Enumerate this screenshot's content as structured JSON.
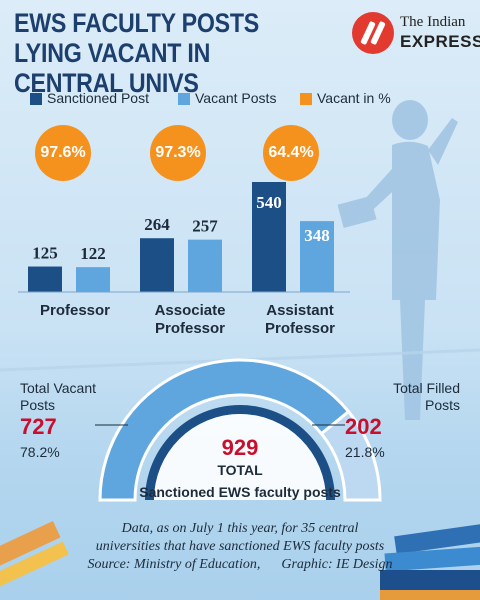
{
  "title": "EWS FACULTY POSTS LYING VACANT IN CENTRAL UNIVS",
  "logo": {
    "line1": "The Indian",
    "line2": "EXPRESS"
  },
  "legend": [
    {
      "label": "Sanctioned Post",
      "color": "#1b4f86"
    },
    {
      "label": "Vacant Posts",
      "color": "#5fa6df"
    },
    {
      "label": "Vacant in %",
      "color": "#f5921e"
    }
  ],
  "chart_data": [
    {
      "type": "bar",
      "categories": [
        "Professor",
        "Associate Professor",
        "Assistant Professor"
      ],
      "series": [
        {
          "name": "Sanctioned Post",
          "values": [
            125,
            264,
            540
          ],
          "color": "#1b4f86"
        },
        {
          "name": "Vacant Posts",
          "values": [
            122,
            257,
            348
          ],
          "color": "#5fa6df"
        }
      ],
      "vacant_percent": [
        "97.6%",
        "97.3%",
        "64.4%"
      ],
      "category_lines": [
        [
          "Professor"
        ],
        [
          "Associate",
          "Professor"
        ],
        [
          "Assistant",
          "Professor"
        ]
      ]
    },
    {
      "type": "pie",
      "style": "semicircle",
      "slices": [
        {
          "name": "Total Vacant Posts",
          "value": 727,
          "percent": "78.2%",
          "color": "#5fa6df"
        },
        {
          "name": "Total Filled Posts",
          "value": 202,
          "percent": "21.8%",
          "color": "#bcd9f1"
        }
      ],
      "total": 929,
      "total_label": "TOTAL",
      "subtitle": "Sanctioned EWS faculty posts",
      "left_title": [
        "Total Vacant",
        "Posts"
      ],
      "right_title": [
        "Total Filled",
        "Posts"
      ]
    }
  ],
  "footnote": {
    "line1": "Data, as on July 1 this year, for 35 central",
    "line2": "universities that have sanctioned EWS faculty posts",
    "line3": "Source: Ministry of Education,      Graphic: IE Design"
  }
}
